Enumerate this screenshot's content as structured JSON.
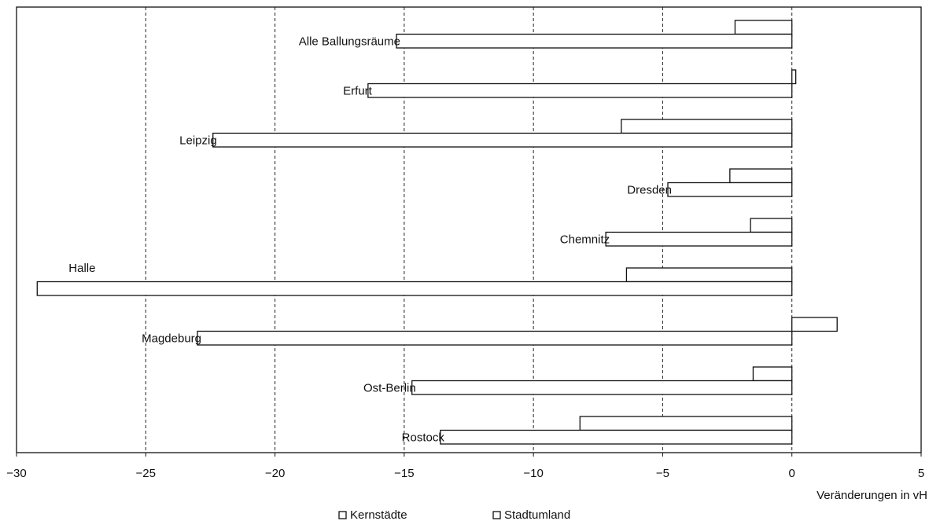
{
  "chart_data": {
    "type": "bar",
    "orientation": "horizontal",
    "title": "",
    "xlabel": "Veränderungen in vH",
    "ylabel": "",
    "xlim": [
      -30,
      5
    ],
    "xticks": [
      -30,
      -25,
      -20,
      -15,
      -10,
      -5,
      0,
      5
    ],
    "xtick_labels": [
      "−30",
      "−25",
      "−20",
      "−15",
      "−10",
      "−5",
      "0",
      "5"
    ],
    "grid": "vertical dashed at x = -25, -20, -15, -10, -5, 0",
    "legend_placement": "bottom-center",
    "categories": [
      "Alle Ballungsräume",
      "Erfurt",
      "Leipzig",
      "Dresden",
      "Chemnitz",
      "Halle",
      "Magdeburg",
      "Ost-Berlin",
      "Rostock"
    ],
    "series": [
      {
        "name": "Kernstädte",
        "values": [
          -2.2,
          0.15,
          -6.6,
          -2.4,
          -1.6,
          -6.4,
          1.75,
          -1.5,
          -8.2
        ]
      },
      {
        "name": "Stadtumland",
        "values": [
          -15.3,
          -16.4,
          -22.4,
          -4.8,
          -7.2,
          -29.2,
          -23.0,
          -14.7,
          -13.6
        ]
      }
    ],
    "colors": {
      "bar_fill": "#ffffff",
      "bar_stroke": "#111111",
      "grid": "#222222"
    }
  }
}
